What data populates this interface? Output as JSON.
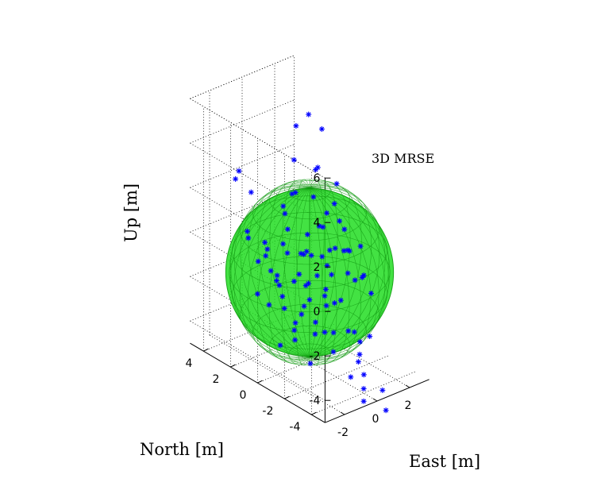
{
  "chart_data": {
    "type": "scatter",
    "projection": "3d",
    "grid": true,
    "x_axis": {
      "label": "East [m]",
      "ticks": [
        "-2",
        "0",
        "2"
      ],
      "range": [
        -3.2,
        3.2
      ]
    },
    "y_axis": {
      "label": "North [m]",
      "ticks": [
        "-4",
        "-2",
        "0",
        "2",
        "4"
      ],
      "range": [
        -5,
        5
      ]
    },
    "z_axis": {
      "label": "Up [m]",
      "ticks": [
        "-4",
        "-2",
        "0",
        "2",
        "4",
        "6"
      ],
      "range": [
        -5,
        6
      ]
    },
    "sphere": {
      "label": "3D MRSE",
      "center": [
        0,
        0,
        -1
      ],
      "radius": 3.8,
      "color": "#22dd22"
    },
    "marker": {
      "symbol": "*",
      "color": "#0000ff"
    },
    "points": [
      [
        0.1,
        0.2,
        6.0
      ],
      [
        -0.5,
        0.4,
        5.6
      ],
      [
        0.5,
        -0.3,
        5.4
      ],
      [
        -2.6,
        2.1,
        3.6
      ],
      [
        -2.4,
        2.6,
        3.0
      ],
      [
        -2.1,
        1.8,
        2.6
      ],
      [
        0.2,
        1.4,
        3.5
      ],
      [
        -1.0,
        0.1,
        2.8
      ],
      [
        1.0,
        0.6,
        3.2
      ],
      [
        1.2,
        1.0,
        2.9
      ],
      [
        1.5,
        -0.2,
        2.6
      ],
      [
        0.4,
        0.2,
        2.2
      ],
      [
        -1.1,
        0.5,
        1.8
      ],
      [
        -3.0,
        1.0,
        1.4
      ],
      [
        -3.1,
        0.8,
        1.2
      ],
      [
        -2.5,
        0.3,
        1.0
      ],
      [
        -1.8,
        -0.2,
        0.9
      ],
      [
        -2.2,
        0.6,
        0.2
      ],
      [
        -2.8,
        -0.5,
        0.1
      ],
      [
        -2.2,
        -1.5,
        -0.2
      ],
      [
        -1.4,
        -1.6,
        -0.5
      ],
      [
        -0.6,
        -0.5,
        0.3
      ],
      [
        0.2,
        0.4,
        0.5
      ],
      [
        1.0,
        0.5,
        0.6
      ],
      [
        1.8,
        0.9,
        0.8
      ],
      [
        2.1,
        0.7,
        1.2
      ],
      [
        1.5,
        -0.4,
        1.0
      ],
      [
        -3.0,
        -1.6,
        -0.6
      ],
      [
        -2.0,
        -2.0,
        -1.2
      ],
      [
        -1.0,
        -1.2,
        -1.5
      ],
      [
        -0.2,
        -0.8,
        -0.8
      ],
      [
        0.6,
        -0.2,
        -0.4
      ],
      [
        1.4,
        0.2,
        -0.5
      ],
      [
        2.2,
        -0.3,
        -0.6
      ],
      [
        2.6,
        0.3,
        -0.9
      ],
      [
        -0.7,
        0.8,
        -0.2
      ],
      [
        0.3,
        1.0,
        -0.6
      ],
      [
        1.1,
        1.2,
        -1.0
      ],
      [
        -1.5,
        0.6,
        -0.9
      ],
      [
        -0.4,
        -0.2,
        -1.4
      ],
      [
        0.5,
        -0.6,
        -1.7
      ],
      [
        1.6,
        -0.9,
        -1.2
      ],
      [
        2.4,
        -1.0,
        -1.6
      ],
      [
        3.0,
        -0.4,
        -1.9
      ],
      [
        2.7,
        -1.3,
        -2.3
      ],
      [
        -2.6,
        -2.0,
        -2.1
      ],
      [
        -1.7,
        -1.0,
        -2.4
      ],
      [
        -0.8,
        -1.4,
        -2.5
      ],
      [
        0.2,
        -1.0,
        -2.2
      ],
      [
        1.2,
        -0.4,
        -2.6
      ],
      [
        2.0,
        0.1,
        -2.9
      ],
      [
        0.8,
        -1.9,
        -3.2
      ],
      [
        -0.4,
        -1.6,
        -3.0
      ],
      [
        -1.4,
        -0.6,
        -3.4
      ],
      [
        0.0,
        0.6,
        -3.1
      ],
      [
        1.5,
        -1.5,
        -3.6
      ],
      [
        2.2,
        -1.8,
        -3.9
      ],
      [
        1.0,
        -2.5,
        -4.1
      ],
      [
        -0.2,
        -2.0,
        -3.8
      ],
      [
        -1.2,
        -1.5,
        -4.2
      ],
      [
        0.5,
        0.2,
        -4.0
      ],
      [
        1.8,
        0.4,
        -4.4
      ],
      [
        2.6,
        -0.6,
        -4.7
      ],
      [
        2.0,
        -1.2,
        -5.2
      ],
      [
        1.2,
        -1.6,
        -5.5
      ],
      [
        1.5,
        -2.2,
        -5.9
      ],
      [
        2.5,
        -1.0,
        -6.0
      ],
      [
        1.0,
        -2.8,
        -6.1
      ],
      [
        2.9,
        -1.9,
        -6.5
      ],
      [
        2.2,
        -3.0,
        -6.8
      ],
      [
        -0.6,
        0.9,
        0.8
      ],
      [
        -1.6,
        1.2,
        0.1
      ],
      [
        0.9,
        -0.8,
        0.1
      ],
      [
        1.8,
        -1.6,
        0.2
      ],
      [
        -0.3,
        1.6,
        1.5
      ],
      [
        0.7,
        1.9,
        1.7
      ],
      [
        -2.0,
        1.4,
        -0.4
      ],
      [
        1.9,
        1.3,
        0.0
      ],
      [
        0.1,
        -1.5,
        -0.6
      ],
      [
        -0.9,
        -2.2,
        -1.0
      ],
      [
        2.8,
        0.8,
        -0.2
      ],
      [
        -2.3,
        -0.9,
        -1.6
      ],
      [
        0.6,
        1.5,
        -1.8
      ],
      [
        1.3,
        2.0,
        -1.3
      ],
      [
        -0.2,
        2.2,
        -2.1
      ],
      [
        2.4,
        1.6,
        -2.0
      ],
      [
        -1.0,
        1.8,
        -2.8
      ],
      [
        0.3,
        2.6,
        -2.6
      ],
      [
        3.1,
        1.2,
        -1.4
      ],
      [
        3.2,
        0.5,
        -2.5
      ],
      [
        -3.2,
        0.0,
        -1.0
      ],
      [
        -2.8,
        -1.2,
        -3.0
      ]
    ]
  }
}
